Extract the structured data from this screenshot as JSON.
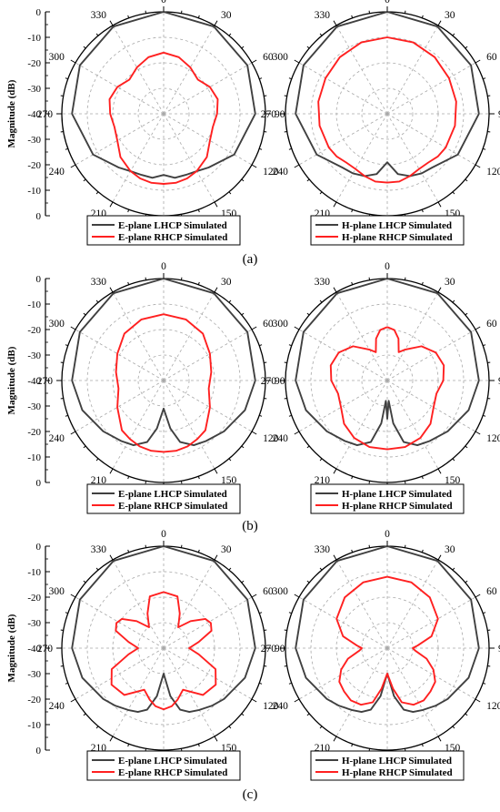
{
  "chart_data": [
    {
      "type": "polar-line",
      "panel": "(a)",
      "ylabel": "Magnitude (dB)",
      "angle_ticks": [
        "0",
        "30",
        "60",
        "90",
        "120",
        "150",
        "180",
        "210",
        "240",
        "270",
        "300",
        "330"
      ],
      "radial_ticks": [
        "0",
        "-10",
        "-20",
        "-30",
        "-40",
        "-30",
        "-20",
        "-10",
        "0"
      ],
      "rlim": [
        -40,
        0
      ],
      "grid": true,
      "charts": [
        {
          "plane": "E",
          "series": [
            {
              "name": "E-plane LHCP Simulated",
              "color": "#404040",
              "theta": [
                0,
                30,
                60,
                90,
                120,
                140,
                150,
                160,
                170,
                180,
                190,
                200,
                210,
                220,
                240,
                270,
                300,
                330,
                360
              ],
              "r": [
                0,
                -0.5,
                -2,
                -4,
                -8,
                -12.5,
                -14,
                -14.5,
                -14.5,
                -16,
                -14.5,
                -14.5,
                -14,
                -12.5,
                -8,
                -4,
                -2,
                -0.5,
                0
              ]
            },
            {
              "name": "E-plane RHCP Simulated",
              "color": "#ff2020",
              "theta": [
                0,
                15,
                30,
                45,
                60,
                75,
                90,
                105,
                120,
                135,
                150,
                160,
                170,
                180,
                190,
                200,
                210,
                225,
                240,
                255,
                270,
                285,
                300,
                315,
                330,
                345,
                360
              ],
              "r": [
                -16,
                -17,
                -19,
                -21,
                -19,
                -18,
                -19,
                -20,
                -19,
                -16,
                -14,
                -13,
                -12.5,
                -12.5,
                -12.5,
                -13,
                -14,
                -16,
                -19,
                -20,
                -19,
                -18,
                -19,
                -21,
                -19,
                -17,
                -16
              ]
            }
          ]
        },
        {
          "plane": "H",
          "series": [
            {
              "name": "H-plane LHCP Simulated",
              "color": "#404040",
              "theta": [
                0,
                30,
                60,
                90,
                120,
                140,
                150,
                160,
                170,
                180,
                190,
                200,
                210,
                220,
                240,
                270,
                300,
                330,
                360
              ],
              "r": [
                0,
                -0.5,
                -2,
                -4,
                -8,
                -12.5,
                -13,
                -14,
                -16,
                -21,
                -16,
                -14,
                -13,
                -12.5,
                -8,
                -4,
                -2,
                -0.5,
                0
              ]
            },
            {
              "name": "H-plane RHCP Simulated",
              "color": "#ff2020",
              "theta": [
                0,
                20,
                40,
                60,
                80,
                100,
                120,
                130,
                140,
                150,
                160,
                170,
                180,
                190,
                200,
                210,
                220,
                230,
                240,
                260,
                280,
                300,
                320,
                340,
                360
              ],
              "r": [
                -10,
                -10.2,
                -11,
                -12,
                -12.5,
                -13,
                -13.5,
                -14,
                -15,
                -15,
                -14,
                -13,
                -13,
                -13,
                -14,
                -15,
                -15,
                -14,
                -13.5,
                -13,
                -12.5,
                -12,
                -11,
                -10.2,
                -10
              ]
            }
          ]
        }
      ]
    },
    {
      "type": "polar-line",
      "panel": "(b)",
      "ylabel": "Magnitude (dB)",
      "angle_ticks": [
        "0",
        "30",
        "60",
        "90",
        "120",
        "150",
        "180",
        "210",
        "240",
        "270",
        "300",
        "330"
      ],
      "radial_ticks": [
        "0",
        "-10",
        "-20",
        "-30",
        "-40",
        "-30",
        "-20",
        "-10",
        "0"
      ],
      "rlim": [
        -40,
        0
      ],
      "grid": true,
      "charts": [
        {
          "plane": "E",
          "series": [
            {
              "name": "E-plane LHCP Simulated",
              "color": "#404040",
              "theta": [
                0,
                30,
                60,
                90,
                110,
                130,
                145,
                155,
                165,
                172,
                180,
                188,
                195,
                205,
                215,
                230,
                250,
                270,
                300,
                330,
                360
              ],
              "r": [
                0,
                -0.5,
                -2,
                -4,
                -6,
                -9,
                -11,
                -12,
                -15,
                -21,
                -29,
                -21,
                -15,
                -12,
                -11,
                -9,
                -6,
                -4,
                -2,
                -0.5,
                0
              ]
            },
            {
              "name": "E-plane RHCP Simulated",
              "color": "#ff2020",
              "theta": [
                0,
                20,
                40,
                60,
                80,
                100,
                120,
                140,
                150,
                160,
                170,
                180,
                190,
                200,
                210,
                220,
                240,
                260,
                280,
                300,
                320,
                340,
                360
              ],
              "r": [
                -14,
                -14.5,
                -16,
                -19,
                -21,
                -22,
                -19,
                -14.5,
                -13.5,
                -12.5,
                -12,
                -12,
                -12,
                -12.5,
                -13.5,
                -14.5,
                -19,
                -22,
                -21,
                -19,
                -16,
                -14.5,
                -14
              ]
            }
          ]
        },
        {
          "plane": "H",
          "series": [
            {
              "name": "H-plane LHCP Simulated",
              "color": "#404040",
              "theta": [
                0,
                30,
                60,
                90,
                110,
                130,
                145,
                155,
                165,
                172,
                176,
                180,
                184,
                188,
                195,
                205,
                215,
                230,
                250,
                270,
                300,
                330,
                360
              ],
              "r": [
                0,
                -0.5,
                -2,
                -4,
                -6,
                -9,
                -11,
                -12,
                -15,
                -23,
                -32,
                -25,
                -32,
                -23,
                -15,
                -12,
                -11,
                -9,
                -6,
                -4,
                -2,
                -0.5,
                0
              ]
            },
            {
              "name": "H-plane RHCP Simulated",
              "color": "#ff2020",
              "theta": [
                0,
                8,
                15,
                22,
                30,
                45,
                60,
                75,
                90,
                105,
                120,
                135,
                150,
                165,
                180,
                195,
                210,
                225,
                240,
                255,
                270,
                285,
                300,
                315,
                330,
                338,
                345,
                352,
                360
              ],
              "r": [
                -19,
                -20,
                -23,
                -28,
                -26,
                -21,
                -18,
                -17,
                -18,
                -20,
                -19,
                -16,
                -14,
                -13,
                -13,
                -13,
                -14,
                -16,
                -19,
                -20,
                -18,
                -17,
                -18,
                -21,
                -26,
                -28,
                -23,
                -20,
                -19
              ]
            }
          ]
        }
      ]
    },
    {
      "type": "polar-line",
      "panel": "(c)",
      "ylabel": "Magnitude (dB)",
      "angle_ticks": [
        "0",
        "30",
        "60",
        "90",
        "120",
        "150",
        "180",
        "210",
        "240",
        "270",
        "300",
        "330"
      ],
      "radial_ticks": [
        "0",
        "-10",
        "-20",
        "-30",
        "-40",
        "-30",
        "-20",
        "-10",
        "0"
      ],
      "rlim": [
        -40,
        0
      ],
      "grid": true,
      "charts": [
        {
          "plane": "E",
          "series": [
            {
              "name": "E-plane LHCP Simulated",
              "color": "#404040",
              "theta": [
                0,
                30,
                60,
                90,
                110,
                130,
                140,
                150,
                158,
                165,
                172,
                180,
                188,
                195,
                202,
                210,
                220,
                230,
                250,
                270,
                300,
                330,
                360
              ],
              "r": [
                0,
                -0.5,
                -2,
                -4,
                -6,
                -9,
                -10.5,
                -12,
                -13,
                -15,
                -21,
                -30,
                -21,
                -15,
                -13,
                -12,
                -10.5,
                -9,
                -6,
                -4,
                -2,
                -0.5,
                0
              ]
            },
            {
              "name": "E-plane RHCP Simulated",
              "color": "#ff2020",
              "theta": [
                0,
                15,
                25,
                35,
                45,
                55,
                62,
                70,
                80,
                90,
                100,
                112,
                125,
                140,
                155,
                165,
                172,
                180,
                188,
                195,
                205,
                220,
                235,
                248,
                260,
                270,
                280,
                290,
                298,
                305,
                315,
                325,
                335,
                345,
                360
              ],
              "r": [
                -18,
                -19,
                -25,
                -30,
                -25,
                -20,
                -19,
                -20,
                -26,
                -30,
                -26,
                -18,
                -15,
                -16,
                -22,
                -19,
                -17,
                -16,
                -17,
                -19,
                -22,
                -16,
                -15,
                -18,
                -26,
                -30,
                -26,
                -20,
                -19,
                -20,
                -25,
                -30,
                -25,
                -19,
                -18
              ]
            }
          ]
        },
        {
          "plane": "H",
          "series": [
            {
              "name": "H-plane LHCP Simulated",
              "color": "#404040",
              "theta": [
                0,
                30,
                60,
                90,
                110,
                130,
                140,
                150,
                158,
                165,
                172,
                180,
                188,
                195,
                202,
                210,
                220,
                230,
                250,
                270,
                300,
                330,
                360
              ],
              "r": [
                0,
                -0.5,
                -2,
                -4,
                -6,
                -9,
                -10.5,
                -12,
                -13,
                -15,
                -21,
                -30,
                -21,
                -15,
                -13,
                -12,
                -10.5,
                -9,
                -6,
                -4,
                -2,
                -0.5,
                0
              ]
            },
            {
              "name": "H-plane RHCP Simulated",
              "color": "#ff2020",
              "theta": [
                0,
                20,
                40,
                60,
                75,
                85,
                90,
                95,
                105,
                115,
                125,
                135,
                145,
                155,
                165,
                172,
                180,
                188,
                195,
                205,
                215,
                225,
                235,
                245,
                255,
                265,
                270,
                275,
                285,
                300,
                320,
                340,
                360
              ],
              "r": [
                -12,
                -12.5,
                -14,
                -17,
                -22,
                -28,
                -30,
                -29,
                -24,
                -20,
                -17,
                -16,
                -15,
                -15.5,
                -18,
                -24,
                -30,
                -24,
                -18,
                -15.5,
                -15,
                -16,
                -17,
                -20,
                -24,
                -29,
                -30,
                -28,
                -22,
                -17,
                -14,
                -12.5,
                -12
              ]
            }
          ]
        }
      ]
    }
  ],
  "legends": [
    {
      "left": [
        "E-plane LHCP Simulated",
        "E-plane RHCP Simulated"
      ],
      "right": [
        "H-plane LHCP Simulated",
        "H-plane RHCP Simulated"
      ]
    },
    {
      "left": [
        "E-plane LHCP Simulated",
        "E-plane RHCP Simulated"
      ],
      "right": [
        "H-plane LHCP Simulated",
        "H-plane RHCP Simulated"
      ]
    },
    {
      "left": [
        "E-plane LHCP Simulated",
        "E-plane RHCP Simulated"
      ],
      "right": [
        "H-plane LHCP Simulated",
        "H-plane RHCP Simulated"
      ]
    }
  ],
  "colors": {
    "lhcp": "#404040",
    "rhcp": "#ff2020",
    "grid": "#a8a8a8",
    "axis": "#000000"
  }
}
